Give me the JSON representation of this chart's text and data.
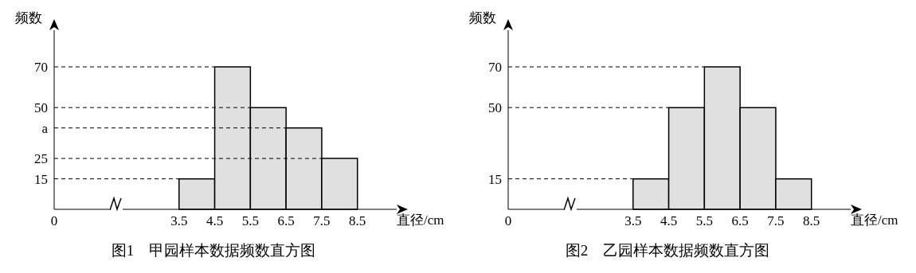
{
  "chart_data": [
    {
      "type": "histogram",
      "title": "图1　甲园样本数据频数直方图",
      "xlabel": "直径/cm",
      "ylabel": "频数",
      "bins": [
        3.5,
        4.5,
        5.5,
        6.5,
        7.5,
        8.5
      ],
      "values": [
        15,
        70,
        50,
        40,
        25
      ],
      "color": "#e0e0e0",
      "xlim": [
        0,
        9.6
      ],
      "xticks": [
        0,
        3.5,
        4.5,
        5.5,
        6.5,
        7.5,
        8.5
      ],
      "ylim": [
        0,
        88
      ],
      "yticks": [
        15,
        25,
        {
          "value": 40,
          "label": "a"
        },
        50,
        70
      ],
      "ref_lines": [
        {
          "axis": "y",
          "value": 15,
          "line_style": "dashed",
          "color": "#000000"
        },
        {
          "axis": "y",
          "value": 25,
          "line_style": "dashed",
          "color": "#000000"
        },
        {
          "axis": "y",
          "value": 40,
          "line_style": "dashed",
          "color": "#000000"
        },
        {
          "axis": "y",
          "value": 50,
          "line_style": "dashed",
          "color": "#000000"
        },
        {
          "axis": "y",
          "value": 70,
          "line_style": "dashed",
          "color": "#000000"
        }
      ]
    },
    {
      "type": "histogram",
      "title": "图2　乙园样本数据频数直方图",
      "xlabel": "直径/cm",
      "ylabel": "频数",
      "bins": [
        3.5,
        4.5,
        5.5,
        6.5,
        7.5,
        8.5
      ],
      "values": [
        15,
        50,
        70,
        50,
        15
      ],
      "color": "#e0e0e0",
      "xlim": [
        0,
        9.6
      ],
      "xticks": [
        0,
        3.5,
        4.5,
        5.5,
        6.5,
        7.5,
        8.5
      ],
      "ylim": [
        0,
        88
      ],
      "yticks": [
        15,
        50,
        70
      ],
      "ref_lines": [
        {
          "axis": "y",
          "value": 15,
          "line_style": "dashed",
          "color": "#000000"
        },
        {
          "axis": "y",
          "value": 50,
          "line_style": "dashed",
          "color": "#000000"
        },
        {
          "axis": "y",
          "value": 70,
          "line_style": "dashed",
          "color": "#000000"
        }
      ]
    }
  ]
}
